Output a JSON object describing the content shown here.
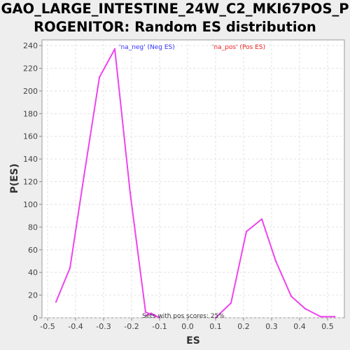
{
  "title_line1": "GAO_LARGE_INTESTINE_24W_C2_MKI67POS_P",
  "title_line2": "ROGENITOR: Random ES distribution",
  "chart_data": {
    "type": "line",
    "xlabel": "ES",
    "ylabel": "P(ES)",
    "xlim": [
      -0.52,
      0.56
    ],
    "ylim": [
      0,
      245
    ],
    "xticks": [
      -0.5,
      -0.4,
      -0.3,
      -0.2,
      -0.1,
      0.0,
      0.1,
      0.2,
      0.3,
      0.4,
      0.5
    ],
    "xtick_labels": [
      "-0.5",
      "-0.4",
      "-0.3",
      "-0.2",
      "-0.1",
      "0.0",
      "0.1",
      "0.2",
      "0.3",
      "0.4",
      "0.5"
    ],
    "yticks": [
      0,
      20,
      40,
      60,
      80,
      100,
      120,
      140,
      160,
      180,
      200,
      220,
      240
    ],
    "grid": true,
    "legend_entries": [
      {
        "label": "'na_neg' (Neg ES)",
        "color": "#3333ff"
      },
      {
        "label": "'na_pos' (Pos ES)",
        "color": "#ee2222"
      }
    ],
    "annotation": "Sets with pos scores: 25%",
    "series": [
      {
        "color": "#ee44ee",
        "x": [
          -0.47,
          -0.42,
          -0.37,
          -0.315,
          -0.26,
          -0.205,
          -0.15,
          -0.1
        ],
        "y": [
          14,
          44,
          125,
          212,
          237,
          110,
          5,
          0
        ]
      },
      {
        "color": "#ee44ee",
        "x": [
          -0.15,
          -0.13,
          -0.1
        ],
        "y": [
          2,
          4,
          0
        ]
      },
      {
        "color": "#ee44ee",
        "x": [
          0.1,
          0.155,
          0.21,
          0.265,
          0.315,
          0.37,
          0.42,
          0.475,
          0.525
        ],
        "y": [
          0,
          13,
          76,
          87,
          50,
          19,
          8,
          1,
          1
        ]
      }
    ]
  }
}
